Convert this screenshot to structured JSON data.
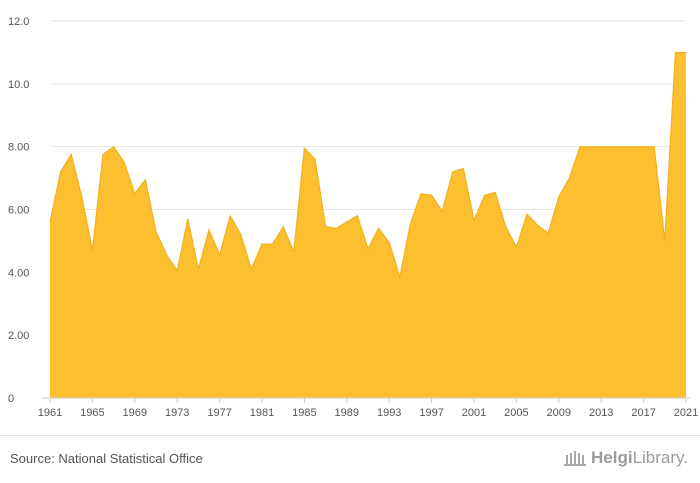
{
  "chart_data": {
    "type": "area",
    "title": "",
    "xlabel": "",
    "ylabel": "",
    "ylim": [
      0,
      12
    ],
    "y_ticks": [
      "0",
      "2.00",
      "4.00",
      "6.00",
      "8.00",
      "10.0",
      "12.0"
    ],
    "x_ticks": [
      "1961",
      "1965",
      "1969",
      "1973",
      "1977",
      "1981",
      "1985",
      "1989",
      "1993",
      "1997",
      "2001",
      "2005",
      "2009",
      "2013",
      "2017",
      "2021"
    ],
    "grid": true,
    "legend": "none",
    "color": "#FBBF2F",
    "x": [
      1961,
      1962,
      1963,
      1964,
      1965,
      1966,
      1967,
      1968,
      1969,
      1970,
      1971,
      1972,
      1973,
      1974,
      1975,
      1976,
      1977,
      1978,
      1979,
      1980,
      1981,
      1982,
      1983,
      1984,
      1985,
      1986,
      1987,
      1988,
      1989,
      1990,
      1991,
      1992,
      1993,
      1994,
      1995,
      1996,
      1997,
      1998,
      1999,
      2000,
      2001,
      2002,
      2003,
      2004,
      2005,
      2006,
      2007,
      2008,
      2009,
      2010,
      2011,
      2012,
      2013,
      2014,
      2015,
      2016,
      2017,
      2018,
      2019,
      2020,
      2021
    ],
    "values": [
      5.6,
      7.2,
      7.75,
      6.4,
      4.7,
      7.75,
      8.0,
      7.5,
      6.5,
      6.95,
      5.3,
      4.55,
      4.05,
      5.7,
      4.1,
      5.35,
      4.55,
      5.8,
      5.2,
      4.1,
      4.9,
      4.9,
      5.45,
      4.65,
      7.95,
      7.6,
      5.45,
      5.4,
      5.6,
      5.8,
      4.75,
      5.4,
      4.95,
      3.85,
      5.55,
      6.5,
      6.45,
      5.95,
      7.2,
      7.3,
      5.65,
      6.45,
      6.55,
      5.45,
      4.8,
      5.85,
      5.5,
      5.25,
      6.4,
      7.0,
      8.0,
      8.0,
      8.0,
      8.0,
      8.0,
      8.0,
      8.0,
      8.0,
      5.0,
      11.0,
      11.0
    ]
  },
  "footer": {
    "source": "Source: National Statistical Office",
    "logo_prefix": "Helgi",
    "logo_suffix": "Library."
  }
}
